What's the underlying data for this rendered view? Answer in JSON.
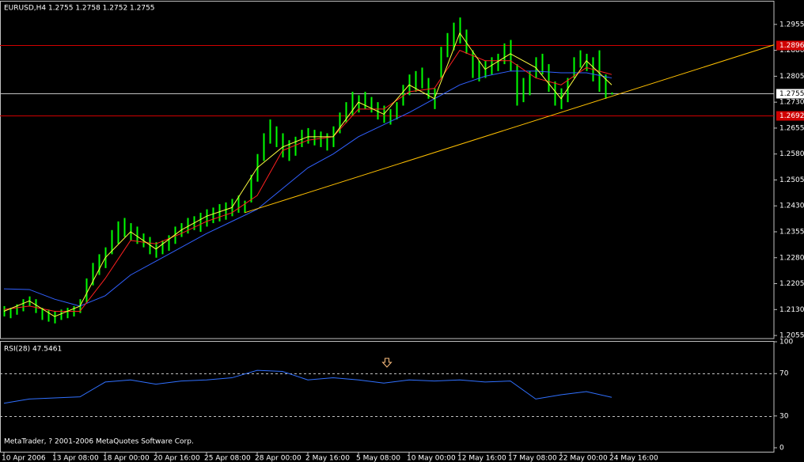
{
  "chart_data": {
    "type": "hl-bars",
    "header": "EURUSD,H4  1.2755 1.2758 1.2752 1.2755",
    "footer": "MetaTrader, ? 2001-2006 MetaQuotes Software Corp.",
    "bar_color": "#00ff00",
    "high": [
      1.214,
      1.2135,
      1.2145,
      1.216,
      1.2168,
      1.216,
      1.2135,
      1.213,
      1.2125,
      1.213,
      1.2135,
      1.214,
      1.216,
      1.222,
      1.2265,
      1.229,
      1.231,
      1.236,
      1.2385,
      1.2395,
      1.238,
      1.237,
      1.235,
      1.234,
      1.2325,
      1.233,
      1.2345,
      1.237,
      1.238,
      1.2395,
      1.24,
      1.241,
      1.242,
      1.2425,
      1.2435,
      1.244,
      1.245,
      1.246,
      1.2445,
      1.252,
      1.258,
      1.264,
      1.268,
      1.266,
      1.264,
      1.262,
      1.263,
      1.265,
      1.2655,
      1.265,
      1.2645,
      1.264,
      1.266,
      1.27,
      1.273,
      1.276,
      1.275,
      1.276,
      1.2745,
      1.273,
      1.272,
      1.271,
      1.273,
      1.278,
      1.281,
      1.282,
      1.283,
      1.28,
      1.277,
      1.289,
      1.293,
      1.296,
      1.2975,
      1.294,
      1.288,
      1.285,
      1.285,
      1.286,
      1.287,
      1.29,
      1.291,
      1.284,
      1.28,
      1.282,
      1.286,
      1.287,
      1.284,
      1.279,
      1.277,
      1.28,
      1.286,
      1.288,
      1.287,
      1.286,
      1.288,
      1.281,
      1.2758
    ],
    "low": [
      1.211,
      1.2105,
      1.2115,
      1.2125,
      1.214,
      1.212,
      1.21,
      1.2095,
      1.209,
      1.21,
      1.2105,
      1.211,
      1.212,
      1.215,
      1.22,
      1.223,
      1.225,
      1.229,
      1.232,
      1.234,
      1.233,
      1.232,
      1.231,
      1.229,
      1.228,
      1.229,
      1.23,
      1.232,
      1.234,
      1.235,
      1.236,
      1.2355,
      1.237,
      1.238,
      1.2385,
      1.239,
      1.24,
      1.241,
      1.241,
      1.244,
      1.25,
      1.256,
      1.261,
      1.26,
      1.257,
      1.256,
      1.2575,
      1.26,
      1.261,
      1.2605,
      1.26,
      1.259,
      1.26,
      1.264,
      1.267,
      1.269,
      1.27,
      1.271,
      1.27,
      1.268,
      1.267,
      1.2665,
      1.268,
      1.272,
      1.275,
      1.276,
      1.277,
      1.274,
      1.271,
      1.28,
      1.286,
      1.288,
      1.29,
      1.287,
      1.28,
      1.279,
      1.28,
      1.281,
      1.282,
      1.284,
      1.282,
      1.272,
      1.273,
      1.275,
      1.28,
      1.281,
      1.276,
      1.272,
      1.271,
      1.273,
      1.28,
      1.283,
      1.282,
      1.279,
      1.276,
      1.274,
      1.2752
    ],
    "ma": [
      {
        "color": "#3060ff",
        "x": [
          0,
          4,
          8,
          12,
          16,
          20,
          24,
          28,
          32,
          36,
          40,
          44,
          48,
          52,
          56,
          60,
          64,
          68,
          72,
          76,
          80,
          84,
          88,
          92,
          96
        ],
        "values": [
          1.219,
          1.2188,
          1.216,
          1.214,
          1.217,
          1.223,
          1.227,
          1.231,
          1.235,
          1.2385,
          1.242,
          1.248,
          1.254,
          1.258,
          1.263,
          1.2665,
          1.27,
          1.274,
          1.278,
          1.2805,
          1.282,
          1.282,
          1.2815,
          1.2815,
          1.28
        ]
      },
      {
        "color": "#ff2020",
        "x": [
          0,
          4,
          8,
          12,
          16,
          20,
          24,
          28,
          32,
          36,
          40,
          44,
          48,
          52,
          56,
          60,
          64,
          68,
          72,
          76,
          80,
          84,
          88,
          92,
          96
        ],
        "values": [
          1.213,
          1.214,
          1.2125,
          1.2125,
          1.222,
          1.233,
          1.232,
          1.235,
          1.2385,
          1.241,
          1.246,
          1.259,
          1.262,
          1.263,
          1.271,
          1.271,
          1.276,
          1.277,
          1.288,
          1.285,
          1.285,
          1.28,
          1.278,
          1.283,
          1.281
        ]
      },
      {
        "color": "#ffff40",
        "x": [
          0,
          4,
          8,
          12,
          16,
          20,
          24,
          28,
          32,
          36,
          40,
          44,
          48,
          52,
          56,
          60,
          64,
          68,
          72,
          76,
          80,
          84,
          88,
          92,
          96
        ],
        "values": [
          1.2125,
          1.2155,
          1.211,
          1.214,
          1.228,
          1.2355,
          1.2305,
          1.236,
          1.24,
          1.2425,
          1.254,
          1.26,
          1.263,
          1.263,
          1.273,
          1.2695,
          1.278,
          1.274,
          1.293,
          1.2825,
          1.287,
          1.283,
          1.274,
          1.285,
          1.278
        ]
      }
    ],
    "trendline": {
      "color": "#ffc000",
      "x": [
        38,
        122
      ],
      "values": [
        1.241,
        1.2898
      ]
    },
    "hlines": [
      {
        "value": 1.2896,
        "color": "#d00000",
        "label_bg": "#d00000",
        "label_color": "#ffffff"
      },
      {
        "value": 1.2755,
        "color": "#c0c0c0",
        "label_bg": "#ffffff",
        "label_color": "#000000"
      },
      {
        "value": 1.2692,
        "color": "#d00000",
        "label_bg": "#d00000",
        "label_color": "#ffffff"
      }
    ],
    "ylim": [
      1.2046,
      1.3021
    ],
    "yticks": [
      {
        "value": 1.2955,
        "label": "1.2955"
      },
      {
        "value": 1.288,
        "label": "1.2880"
      },
      {
        "value": 1.2805,
        "label": "1.2805"
      },
      {
        "value": 1.273,
        "label": "1.2730"
      },
      {
        "value": 1.2655,
        "label": "1.2655"
      },
      {
        "value": 1.258,
        "label": "1.2580"
      },
      {
        "value": 1.2505,
        "label": "1.2505"
      },
      {
        "value": 1.243,
        "label": "1.2430"
      },
      {
        "value": 1.2355,
        "label": "1.2355"
      },
      {
        "value": 1.228,
        "label": "1.2280"
      },
      {
        "value": 1.2205,
        "label": "1.2205"
      },
      {
        "value": 1.213,
        "label": "1.2130"
      },
      {
        "value": 1.2055,
        "label": "1.2055"
      }
    ],
    "xticks": [
      {
        "value": 0,
        "label": "10 Apr 2006"
      },
      {
        "value": 8,
        "label": "13 Apr 08:00"
      },
      {
        "value": 16,
        "label": "18 Apr 00:00"
      },
      {
        "value": 24,
        "label": "20 Apr 16:00"
      },
      {
        "value": 32,
        "label": "25 Apr 08:00"
      },
      {
        "value": 40,
        "label": "28 Apr 00:00"
      },
      {
        "value": 48,
        "label": "2 May 16:00"
      },
      {
        "value": 56,
        "label": "5 May 08:00"
      },
      {
        "value": 64,
        "label": "10 May 00:00"
      },
      {
        "value": 72,
        "label": "12 May 16:00"
      },
      {
        "value": 80,
        "label": "17 May 08:00"
      },
      {
        "value": 88,
        "label": "22 May 00:00"
      },
      {
        "value": 96,
        "label": "24 May 16:00"
      }
    ],
    "rsi_label": "RSI(28) 47.5461",
    "rsi_color": "#3070ff",
    "rsi_x": [
      0,
      4,
      8,
      12,
      16,
      20,
      24,
      28,
      32,
      36,
      40,
      44,
      48,
      52,
      56,
      60,
      64,
      68,
      72,
      76,
      80,
      84,
      88,
      92,
      96
    ],
    "rsi_values": [
      42,
      46,
      47,
      48,
      62,
      64,
      60,
      63,
      64,
      66,
      73,
      72,
      64,
      66,
      64,
      61,
      64,
      63,
      64,
      62,
      63,
      46,
      50,
      53,
      47.5461
    ],
    "rsi_ylim": [
      0,
      100
    ],
    "rsi_yticks": [
      100,
      70,
      30,
      0
    ],
    "rsi_levels": [
      70,
      30
    ]
  }
}
